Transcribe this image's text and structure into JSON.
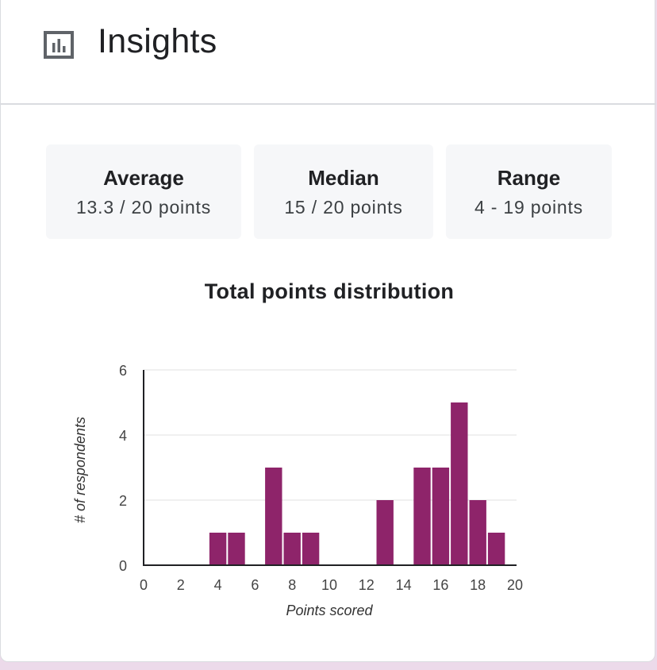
{
  "header": {
    "title": "Insights",
    "icon": "bar-chart-icon"
  },
  "stats": [
    {
      "label": "Average",
      "value": "13.3 / 20 points"
    },
    {
      "label": "Median",
      "value": "15 / 20 points"
    },
    {
      "label": "Range",
      "value": "4 - 19 points"
    }
  ],
  "chart_data": {
    "type": "bar",
    "title": "Total points distribution",
    "xlabel": "Points scored",
    "ylabel": "# of respondents",
    "xlim": [
      0,
      20
    ],
    "ylim": [
      0,
      6
    ],
    "x_ticks": [
      0,
      2,
      4,
      6,
      8,
      10,
      12,
      14,
      16,
      18,
      20
    ],
    "y_ticks": [
      0,
      2,
      4,
      6
    ],
    "grid": true,
    "bar_color": "#8e246a",
    "bins": [
      {
        "x": 4,
        "count": 1
      },
      {
        "x": 5,
        "count": 1
      },
      {
        "x": 7,
        "count": 3
      },
      {
        "x": 8,
        "count": 1
      },
      {
        "x": 9,
        "count": 1
      },
      {
        "x": 13,
        "count": 2
      },
      {
        "x": 15,
        "count": 3
      },
      {
        "x": 16,
        "count": 3
      },
      {
        "x": 17,
        "count": 5
      },
      {
        "x": 18,
        "count": 2
      },
      {
        "x": 19,
        "count": 1
      }
    ]
  }
}
